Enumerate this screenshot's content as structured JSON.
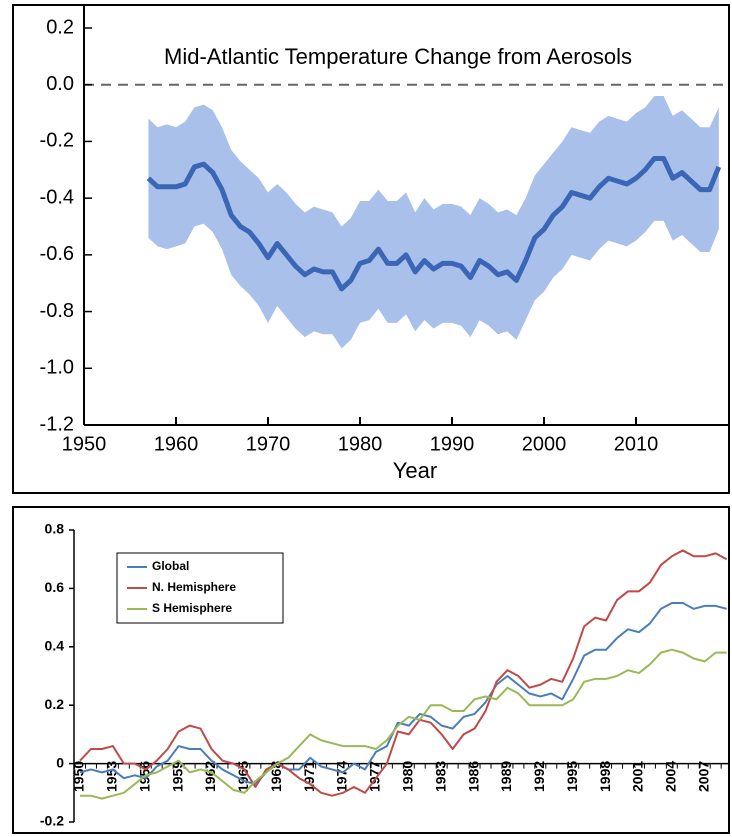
{
  "chart_data": [
    {
      "type": "line",
      "title": "Mid-Atlantic Temperature Change from Aerosols",
      "x_label": "Year",
      "x": [
        1957,
        1958,
        1959,
        1960,
        1961,
        1962,
        1963,
        1964,
        1965,
        1966,
        1967,
        1968,
        1969,
        1970,
        1971,
        1972,
        1973,
        1974,
        1975,
        1976,
        1977,
        1978,
        1979,
        1980,
        1981,
        1982,
        1983,
        1984,
        1985,
        1986,
        1987,
        1988,
        1989,
        1990,
        1991,
        1992,
        1993,
        1994,
        1995,
        1996,
        1997,
        1998,
        1999,
        2000,
        2001,
        2002,
        2003,
        2004,
        2005,
        2006,
        2007,
        2008,
        2009,
        2010,
        2011,
        2012,
        2013,
        2014,
        2015,
        2016,
        2017,
        2018,
        2019
      ],
      "series": [
        {
          "color": "#3a66b5",
          "values": [
            -0.33,
            -0.36,
            -0.36,
            -0.36,
            -0.35,
            -0.29,
            -0.28,
            -0.31,
            -0.37,
            -0.46,
            -0.5,
            -0.52,
            -0.56,
            -0.61,
            -0.56,
            -0.6,
            -0.64,
            -0.67,
            -0.65,
            -0.66,
            -0.66,
            -0.72,
            -0.69,
            -0.63,
            -0.62,
            -0.58,
            -0.63,
            -0.63,
            -0.6,
            -0.66,
            -0.62,
            -0.65,
            -0.63,
            -0.63,
            -0.64,
            -0.68,
            -0.62,
            -0.64,
            -0.67,
            -0.66,
            -0.69,
            -0.62,
            -0.54,
            -0.51,
            -0.46,
            -0.43,
            -0.38,
            -0.39,
            -0.4,
            -0.36,
            -0.33,
            -0.34,
            -0.35,
            -0.33,
            -0.3,
            -0.26,
            -0.26,
            -0.33,
            -0.31,
            -0.34,
            -0.37,
            -0.37,
            -0.29
          ]
        }
      ],
      "band": {
        "color": "#a9c0ea",
        "upper": [
          -0.12,
          -0.15,
          -0.14,
          -0.15,
          -0.13,
          -0.08,
          -0.07,
          -0.09,
          -0.15,
          -0.23,
          -0.27,
          -0.3,
          -0.33,
          -0.38,
          -0.35,
          -0.38,
          -0.42,
          -0.45,
          -0.43,
          -0.44,
          -0.45,
          -0.5,
          -0.47,
          -0.41,
          -0.41,
          -0.37,
          -0.41,
          -0.41,
          -0.38,
          -0.45,
          -0.4,
          -0.44,
          -0.42,
          -0.42,
          -0.43,
          -0.46,
          -0.4,
          -0.42,
          -0.45,
          -0.44,
          -0.46,
          -0.4,
          -0.32,
          -0.28,
          -0.24,
          -0.2,
          -0.15,
          -0.16,
          -0.17,
          -0.13,
          -0.11,
          -0.12,
          -0.13,
          -0.1,
          -0.08,
          -0.04,
          -0.04,
          -0.11,
          -0.09,
          -0.12,
          -0.15,
          -0.15,
          -0.08
        ],
        "lower": [
          -0.54,
          -0.57,
          -0.58,
          -0.57,
          -0.56,
          -0.5,
          -0.49,
          -0.52,
          -0.58,
          -0.67,
          -0.71,
          -0.74,
          -0.78,
          -0.84,
          -0.78,
          -0.82,
          -0.86,
          -0.89,
          -0.87,
          -0.88,
          -0.88,
          -0.93,
          -0.9,
          -0.84,
          -0.83,
          -0.79,
          -0.84,
          -0.84,
          -0.81,
          -0.87,
          -0.83,
          -0.86,
          -0.84,
          -0.84,
          -0.85,
          -0.89,
          -0.83,
          -0.85,
          -0.88,
          -0.87,
          -0.9,
          -0.83,
          -0.76,
          -0.73,
          -0.68,
          -0.65,
          -0.6,
          -0.61,
          -0.62,
          -0.58,
          -0.55,
          -0.56,
          -0.57,
          -0.55,
          -0.52,
          -0.48,
          -0.48,
          -0.55,
          -0.53,
          -0.56,
          -0.59,
          -0.59,
          -0.51
        ]
      },
      "xlim": [
        1950,
        2020
      ],
      "xticks": [
        1950,
        1960,
        1970,
        1980,
        1990,
        2000,
        2010
      ],
      "ylim": [
        -1.2,
        0.2
      ],
      "yticks": [
        -1.2,
        {
          "value": -1,
          "label": "-1.0"
        },
        -0.8,
        -0.6,
        -0.4,
        -0.2,
        {
          "value": 0,
          "label": "0.0"
        },
        0.2
      ],
      "reference_line": 0
    },
    {
      "type": "line",
      "categories": [
        "1950",
        null,
        null,
        "1953",
        null,
        null,
        "1956",
        null,
        null,
        "1959",
        null,
        null,
        "1962",
        null,
        null,
        "1965",
        null,
        null,
        "1968",
        null,
        null,
        "1971",
        null,
        null,
        "1974",
        null,
        null,
        "1977",
        null,
        null,
        "1980",
        null,
        null,
        "1983",
        null,
        null,
        "1986",
        null,
        null,
        "1989",
        null,
        null,
        "1992",
        null,
        null,
        "1995",
        null,
        null,
        "1998",
        null,
        null,
        "2001",
        null,
        null,
        "2004",
        null,
        null,
        "2007",
        null,
        null
      ],
      "series": [
        {
          "name": "Global",
          "color": "#4a7ebb",
          "values": [
            -0.03,
            -0.02,
            -0.03,
            -0.02,
            -0.05,
            -0.04,
            -0.05,
            -0.01,
            0.01,
            0.06,
            0.05,
            0.05,
            0.01,
            -0.02,
            -0.04,
            -0.06,
            -0.07,
            -0.03,
            0.0,
            -0.02,
            -0.02,
            0.02,
            -0.01,
            -0.02,
            -0.03,
            0.0,
            -0.02,
            0.04,
            0.06,
            0.14,
            0.13,
            0.17,
            0.16,
            0.13,
            0.12,
            0.16,
            0.17,
            0.21,
            0.27,
            0.3,
            0.27,
            0.24,
            0.23,
            0.24,
            0.22,
            0.29,
            0.37,
            0.39,
            0.39,
            0.43,
            0.46,
            0.45,
            0.48,
            0.53,
            0.55,
            0.55,
            0.53,
            0.54,
            0.54,
            0.53
          ]
        },
        {
          "name": "N. Hemisphere",
          "color": "#be4b48",
          "values": [
            0.01,
            0.05,
            0.05,
            0.06,
            0.0,
            0.0,
            -0.02,
            0.01,
            0.05,
            0.11,
            0.13,
            0.12,
            0.05,
            0.01,
            0.0,
            -0.02,
            -0.08,
            -0.02,
            0.0,
            -0.02,
            -0.05,
            -0.07,
            -0.1,
            -0.11,
            -0.1,
            -0.08,
            -0.1,
            -0.05,
            0.0,
            0.11,
            0.1,
            0.15,
            0.14,
            0.1,
            0.05,
            0.1,
            0.12,
            0.18,
            0.28,
            0.32,
            0.3,
            0.26,
            0.27,
            0.29,
            0.28,
            0.36,
            0.47,
            0.5,
            0.49,
            0.56,
            0.59,
            0.59,
            0.62,
            0.68,
            0.71,
            0.73,
            0.71,
            0.71,
            0.72,
            0.7
          ]
        },
        {
          "name": "S Hemisphere",
          "color": "#98b954",
          "values": [
            -0.11,
            -0.11,
            -0.12,
            -0.11,
            -0.1,
            -0.07,
            -0.04,
            -0.03,
            -0.01,
            0.01,
            -0.03,
            -0.02,
            -0.03,
            -0.06,
            -0.09,
            -0.1,
            -0.06,
            -0.03,
            0.0,
            0.02,
            0.06,
            0.1,
            0.08,
            0.07,
            0.06,
            0.06,
            0.06,
            0.05,
            0.08,
            0.13,
            0.16,
            0.15,
            0.2,
            0.2,
            0.18,
            0.18,
            0.22,
            0.23,
            0.22,
            0.26,
            0.24,
            0.2,
            0.2,
            0.2,
            0.2,
            0.22,
            0.28,
            0.29,
            0.29,
            0.3,
            0.32,
            0.31,
            0.34,
            0.38,
            0.39,
            0.38,
            0.36,
            0.35,
            0.38,
            0.38
          ]
        }
      ],
      "ylim": [
        -0.2,
        0.8
      ],
      "yticks": [
        -0.2,
        0,
        0.2,
        0.4,
        0.6,
        0.8
      ],
      "legend": "upper-left"
    }
  ]
}
